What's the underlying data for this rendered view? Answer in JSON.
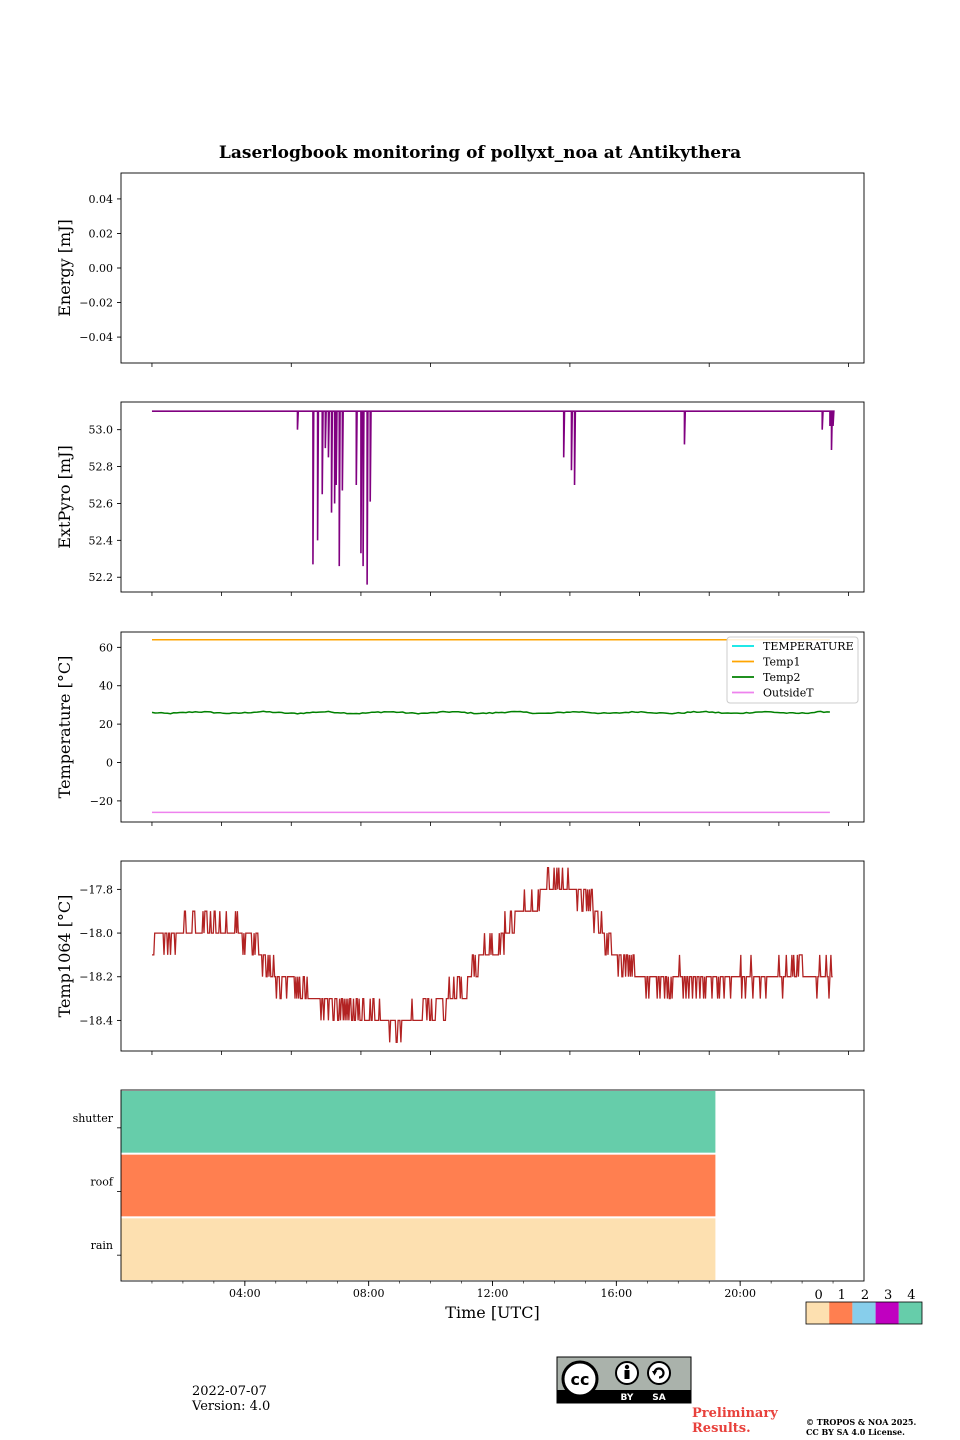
{
  "title": "Laserlogbook monitoring of pollyxt_noa at Antikythera",
  "footer": {
    "date": "2022-07-07",
    "version": "Version: 4.0",
    "preliminary": [
      "Preliminary",
      "Results."
    ],
    "copyright": [
      "© TROPOS & NOA 2025.",
      "CC BY SA 4.0 License."
    ],
    "license_badge": [
      "BY",
      "SA"
    ]
  },
  "chart_data": [
    {
      "type": "line",
      "ylabel": "Energy [mJ]",
      "ylim": [
        -0.055,
        0.055
      ],
      "yticks": [
        0.04,
        0.02,
        0.0,
        -0.02,
        -0.04
      ],
      "ytick_labels": [
        "0.04",
        "0.02",
        "0.00",
        "−0.02",
        "−0.04"
      ],
      "series": []
    },
    {
      "type": "line",
      "ylabel": "ExtPyro [mJ]",
      "ylim": [
        52.12,
        53.15
      ],
      "yticks": [
        53.0,
        52.8,
        52.6,
        52.4,
        52.2
      ],
      "ytick_labels": [
        "53.0",
        "52.8",
        "52.6",
        "52.4",
        "52.2"
      ],
      "series": [
        {
          "color": "#800080",
          "baseline": 53.1,
          "x_hours": [
            1.0,
            23.0
          ],
          "dips": [
            [
              5.7,
              53.0
            ],
            [
              6.2,
              52.27
            ],
            [
              6.35,
              52.4
            ],
            [
              6.5,
              52.65
            ],
            [
              6.6,
              52.9
            ],
            [
              6.7,
              52.85
            ],
            [
              6.8,
              52.55
            ],
            [
              6.9,
              52.6
            ],
            [
              6.95,
              52.7
            ],
            [
              7.05,
              52.26
            ],
            [
              7.15,
              52.67
            ],
            [
              7.6,
              52.7
            ],
            [
              7.75,
              52.33
            ],
            [
              7.82,
              52.26
            ],
            [
              7.95,
              52.16
            ],
            [
              8.05,
              52.61
            ],
            [
              14.3,
              52.85
            ],
            [
              14.55,
              52.78
            ],
            [
              14.65,
              52.7
            ],
            [
              18.2,
              52.92
            ],
            [
              22.65,
              53.0
            ],
            [
              22.9,
              53.02
            ],
            [
              22.95,
              52.89
            ],
            [
              23.0,
              53.02
            ]
          ]
        }
      ]
    },
    {
      "type": "line",
      "ylabel": "Temperature [°C]",
      "ylim": [
        -31,
        68
      ],
      "yticks": [
        60,
        40,
        20,
        0,
        -20
      ],
      "ytick_labels": [
        "60",
        "40",
        "20",
        "0",
        "−20"
      ],
      "legend": "top-right",
      "series": [
        {
          "name": "TEMPERATURE",
          "color": "#00e5e5",
          "values": []
        },
        {
          "name": "Temp1",
          "color": "#ffa500",
          "value": 64
        },
        {
          "name": "Temp2",
          "color": "#008000",
          "value": 26
        },
        {
          "name": "OutsideT",
          "color": "#ee82ee",
          "value": -26
        }
      ]
    },
    {
      "type": "line",
      "ylabel": "Temp1064 [°C]",
      "ylim": [
        -18.54,
        -17.67
      ],
      "yticks": [
        -17.8,
        -18.0,
        -18.2,
        -18.4
      ],
      "ytick_labels": [
        "−17.8",
        "−18.0",
        "−18.2",
        "−18.4"
      ],
      "series": [
        {
          "color": "#b22222",
          "x_hours": [
            1.0,
            23.0
          ],
          "trend": [
            [
              1.0,
              -18.05
            ],
            [
              2.5,
              -17.95
            ],
            [
              4.0,
              -18.0
            ],
            [
              5.0,
              -18.2
            ],
            [
              6.0,
              -18.28
            ],
            [
              7.0,
              -18.32
            ],
            [
              8.0,
              -18.38
            ],
            [
              9.0,
              -18.43
            ],
            [
              10.0,
              -18.35
            ],
            [
              11.0,
              -18.25
            ],
            [
              12.0,
              -18.05
            ],
            [
              13.0,
              -17.9
            ],
            [
              14.0,
              -17.75
            ],
            [
              15.0,
              -17.82
            ],
            [
              16.0,
              -18.1
            ],
            [
              17.0,
              -18.22
            ],
            [
              18.0,
              -18.2
            ],
            [
              19.0,
              -18.22
            ],
            [
              20.0,
              -18.2
            ],
            [
              22.0,
              -18.2
            ],
            [
              23.0,
              -18.2
            ]
          ]
        }
      ]
    },
    {
      "type": "heatmap",
      "xlabel": "Time [UTC]",
      "categories": [
        "rain",
        "roof",
        "shutter"
      ],
      "x_tick_labels": [
        "04:00",
        "08:00",
        "12:00",
        "16:00",
        "20:00"
      ],
      "x_ticks_hours": [
        4,
        8,
        12,
        16,
        20
      ],
      "xlim_hours": [
        0,
        24
      ],
      "bands": [
        {
          "category": "shutter",
          "status": 4,
          "end_hour": 19.2
        },
        {
          "category": "roof",
          "status": 1,
          "end_hour": 19.2
        },
        {
          "category": "rain",
          "status": 0,
          "end_hour": 19.2
        }
      ],
      "colorbar": {
        "labels": [
          "0",
          "1",
          "2",
          "3",
          "4"
        ],
        "colors": [
          "#fde0b0",
          "#ff7f50",
          "#87ceeb",
          "#c000c0",
          "#66cdaa"
        ]
      }
    }
  ]
}
